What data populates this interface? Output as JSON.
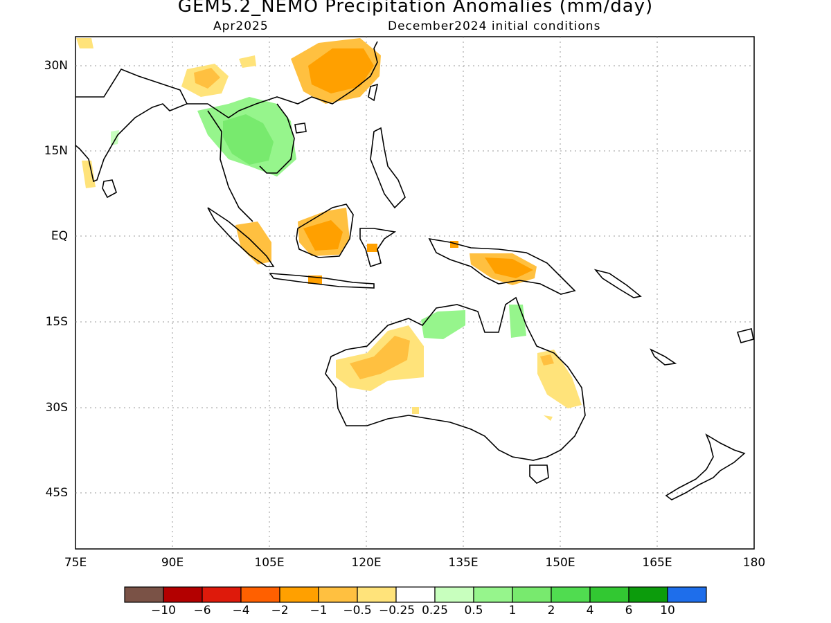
{
  "title": "GEM5.2_NEMO Precipitation Anomalies (mm/day)",
  "subtitle_left": "Apr2025",
  "subtitle_right": "December2024 initial conditions",
  "lat_labels": [
    "30N",
    "15N",
    "EQ",
    "15S",
    "30S",
    "45S"
  ],
  "lon_labels": [
    "75E",
    "90E",
    "105E",
    "120E",
    "135E",
    "150E",
    "165E",
    "180"
  ],
  "colorbar": {
    "colors": [
      "#7a5246",
      "#b30000",
      "#de1a0b",
      "#ff6000",
      "#ffa000",
      "#ffc040",
      "#ffe37a",
      "#ffffff",
      "#c8ffbe",
      "#96f58c",
      "#78ea6e",
      "#50dc50",
      "#32c832",
      "#0c9c0c",
      "#1e6eeb"
    ],
    "labels": [
      "−10",
      "−6",
      "−4",
      "−2",
      "−1",
      "−0.5",
      "−0.25",
      "0.25",
      "0.5",
      "1",
      "2",
      "4",
      "6",
      "10"
    ]
  }
}
